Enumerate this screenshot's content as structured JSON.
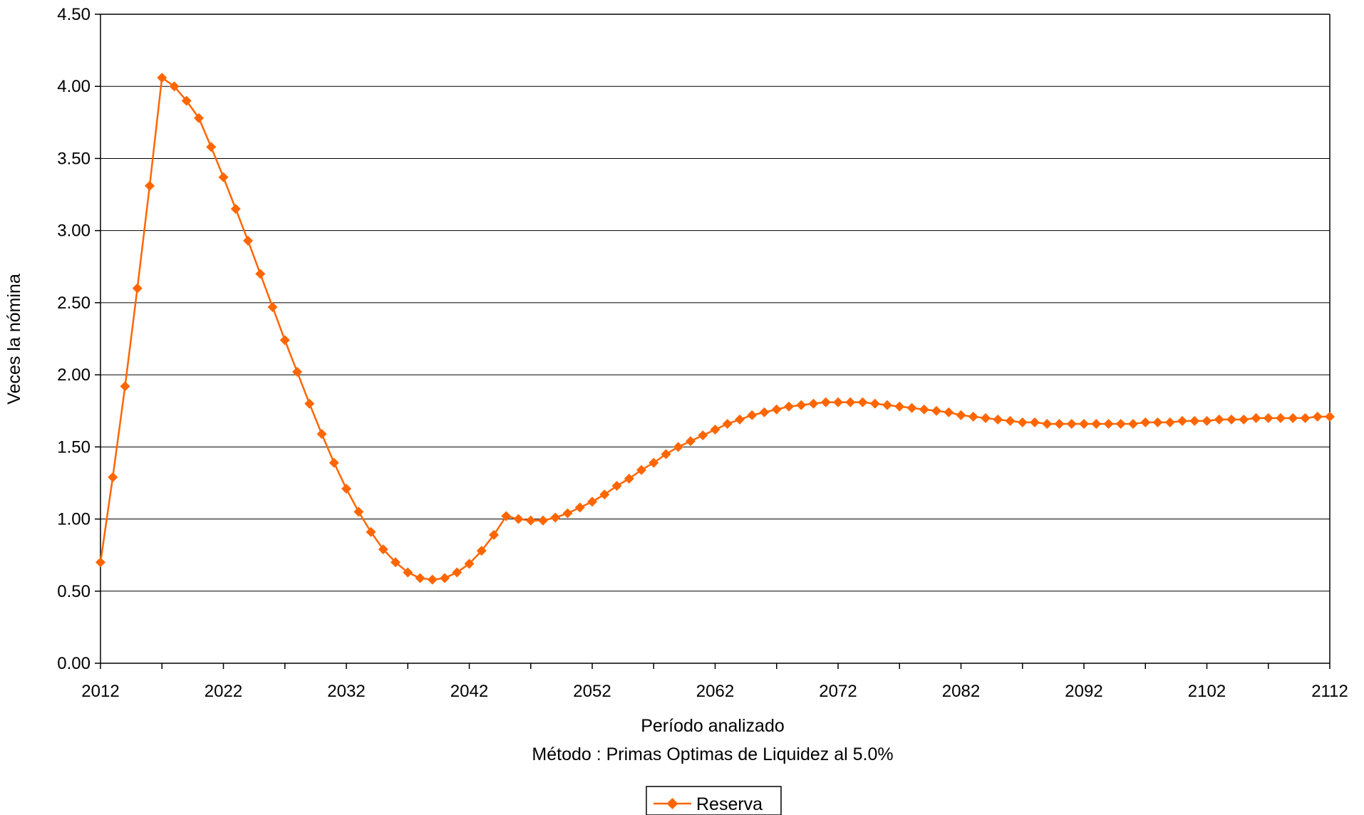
{
  "chart_data": {
    "type": "line",
    "title": "",
    "xlabel": "Período analizado",
    "subtitle": "Método : Primas Optimas de Liquidez al 5.0%",
    "ylabel": "Veces la nómina",
    "xlim": [
      2012,
      2112
    ],
    "ylim": [
      0,
      4.5
    ],
    "x_ticks": [
      "2012",
      "2022",
      "2032",
      "2042",
      "2052",
      "2062",
      "2072",
      "2082",
      "2092",
      "2102",
      "2112"
    ],
    "y_ticks": [
      "0.00",
      "0.50",
      "1.00",
      "1.50",
      "2.00",
      "2.50",
      "3.00",
      "3.50",
      "4.00",
      "4.50"
    ],
    "grid": "horizontal",
    "legend_position": "bottom-center",
    "series": [
      {
        "name": "Reserva",
        "color": "#FF6600",
        "marker": "diamond",
        "x": [
          2012,
          2013,
          2014,
          2015,
          2016,
          2017,
          2018,
          2019,
          2020,
          2021,
          2022,
          2023,
          2024,
          2025,
          2026,
          2027,
          2028,
          2029,
          2030,
          2031,
          2032,
          2033,
          2034,
          2035,
          2036,
          2037,
          2038,
          2039,
          2040,
          2041,
          2042,
          2043,
          2044,
          2045,
          2046,
          2047,
          2048,
          2049,
          2050,
          2051,
          2052,
          2053,
          2054,
          2055,
          2056,
          2057,
          2058,
          2059,
          2060,
          2061,
          2062,
          2063,
          2064,
          2065,
          2066,
          2067,
          2068,
          2069,
          2070,
          2071,
          2072,
          2073,
          2074,
          2075,
          2076,
          2077,
          2078,
          2079,
          2080,
          2081,
          2082,
          2083,
          2084,
          2085,
          2086,
          2087,
          2088,
          2089,
          2090,
          2091,
          2092,
          2093,
          2094,
          2095,
          2096,
          2097,
          2098,
          2099,
          2100,
          2101,
          2102,
          2103,
          2104,
          2105,
          2106,
          2107,
          2108,
          2109,
          2110,
          2111,
          2112
        ],
        "values": [
          0.7,
          1.29,
          1.92,
          2.6,
          3.31,
          4.06,
          4.0,
          3.9,
          3.78,
          3.58,
          3.37,
          3.15,
          2.93,
          2.7,
          2.47,
          2.24,
          2.02,
          1.8,
          1.59,
          1.39,
          1.21,
          1.05,
          0.91,
          0.79,
          0.7,
          0.63,
          0.59,
          0.58,
          0.59,
          0.63,
          0.69,
          0.78,
          0.89,
          1.02,
          1.0,
          0.99,
          0.99,
          1.01,
          1.04,
          1.08,
          1.12,
          1.17,
          1.23,
          1.28,
          1.34,
          1.39,
          1.45,
          1.5,
          1.54,
          1.58,
          1.62,
          1.66,
          1.69,
          1.72,
          1.74,
          1.76,
          1.78,
          1.79,
          1.8,
          1.81,
          1.81,
          1.81,
          1.81,
          1.8,
          1.79,
          1.78,
          1.77,
          1.76,
          1.75,
          1.74,
          1.72,
          1.71,
          1.7,
          1.69,
          1.68,
          1.67,
          1.67,
          1.66,
          1.66,
          1.66,
          1.66,
          1.66,
          1.66,
          1.66,
          1.66,
          1.67,
          1.67,
          1.67,
          1.68,
          1.68,
          1.68,
          1.69,
          1.69,
          1.69,
          1.7,
          1.7,
          1.7,
          1.7,
          1.7,
          1.71,
          1.71
        ]
      }
    ]
  }
}
